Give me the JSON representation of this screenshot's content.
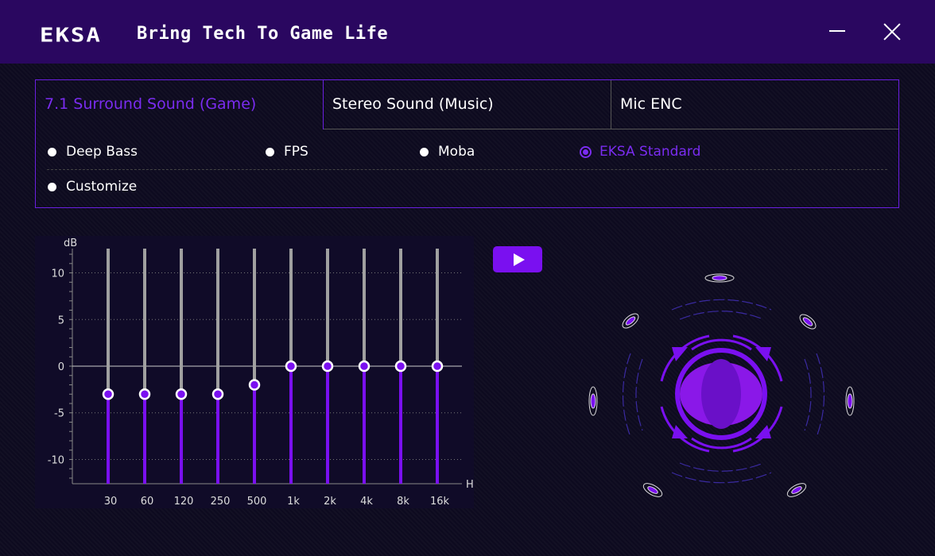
{
  "header": {
    "logo": "EKSA",
    "tagline": "Bring Tech To Game Life"
  },
  "tabs": [
    {
      "label": "7.1 Surround Sound (Game)",
      "active": true
    },
    {
      "label": "Stereo Sound (Music)",
      "active": false
    },
    {
      "label": "Mic ENC",
      "active": false
    }
  ],
  "presets": [
    {
      "label": "Deep Bass",
      "selected": false
    },
    {
      "label": "FPS",
      "selected": false
    },
    {
      "label": "Moba",
      "selected": false
    },
    {
      "label": "EKSA Standard",
      "selected": true
    },
    {
      "label": "Customize",
      "selected": false
    }
  ],
  "colors": {
    "accent": "#7a10f0",
    "header": "#2a0760",
    "slider_track": "#a0a0a0"
  },
  "chart_data": {
    "type": "bar",
    "ylabel": "dB",
    "xlabel": "Hz",
    "categories": [
      "30",
      "60",
      "120",
      "250",
      "500",
      "1k",
      "2k",
      "4k",
      "8k",
      "16k"
    ],
    "values": [
      -3,
      -3,
      -3,
      -3,
      -2,
      0,
      0,
      0,
      0,
      0
    ],
    "ylim": [
      -12.6,
      12.6
    ],
    "yticks": [
      10,
      5,
      0,
      -5,
      -10
    ],
    "grid": "dotted horizontal"
  }
}
